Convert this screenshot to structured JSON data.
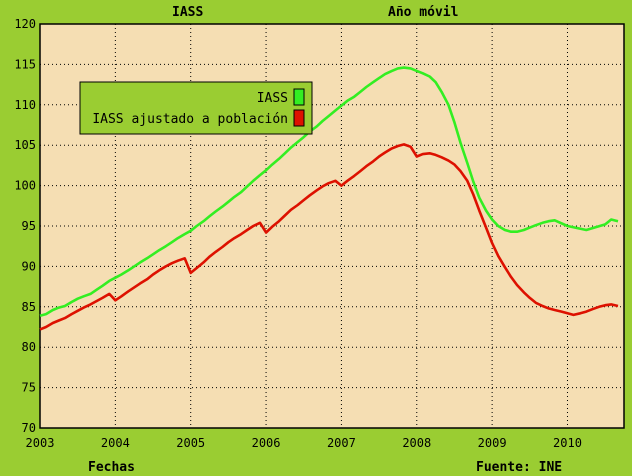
{
  "header": {
    "left_title": "IASS",
    "right_title": "Año móvil"
  },
  "footer": {
    "x_title": "Fechas",
    "source": "Fuente: INE"
  },
  "chart_data": {
    "type": "line",
    "ylim": [
      70,
      120
    ],
    "y_ticks": [
      "70",
      "75",
      "80",
      "85",
      "90",
      "95",
      "100",
      "105",
      "110",
      "115",
      "120"
    ],
    "xlim": [
      2003.0,
      2010.75
    ],
    "x_ticks": [
      "2003",
      "2004",
      "2005",
      "2006",
      "2007",
      "2008",
      "2009",
      "2010"
    ],
    "grid": true,
    "legend_position": "top-left",
    "series": [
      {
        "name": "IASS",
        "color": "#33ee22",
        "points": [
          [
            2003.0,
            83.9
          ],
          [
            2003.08,
            84.1
          ],
          [
            2003.17,
            84.6
          ],
          [
            2003.25,
            84.9
          ],
          [
            2003.33,
            85.1
          ],
          [
            2003.42,
            85.6
          ],
          [
            2003.5,
            86.0
          ],
          [
            2003.58,
            86.3
          ],
          [
            2003.67,
            86.6
          ],
          [
            2003.75,
            87.1
          ],
          [
            2003.83,
            87.6
          ],
          [
            2003.92,
            88.2
          ],
          [
            2004.0,
            88.6
          ],
          [
            2004.08,
            89.0
          ],
          [
            2004.17,
            89.5
          ],
          [
            2004.25,
            90.0
          ],
          [
            2004.33,
            90.5
          ],
          [
            2004.42,
            91.0
          ],
          [
            2004.5,
            91.5
          ],
          [
            2004.58,
            92.0
          ],
          [
            2004.67,
            92.5
          ],
          [
            2004.75,
            93.0
          ],
          [
            2004.83,
            93.5
          ],
          [
            2004.92,
            94.0
          ],
          [
            2005.0,
            94.4
          ],
          [
            2005.08,
            95.0
          ],
          [
            2005.17,
            95.6
          ],
          [
            2005.25,
            96.2
          ],
          [
            2005.33,
            96.8
          ],
          [
            2005.42,
            97.4
          ],
          [
            2005.5,
            98.0
          ],
          [
            2005.58,
            98.6
          ],
          [
            2005.67,
            99.2
          ],
          [
            2005.75,
            99.9
          ],
          [
            2005.83,
            100.6
          ],
          [
            2005.92,
            101.3
          ],
          [
            2006.0,
            101.9
          ],
          [
            2006.08,
            102.6
          ],
          [
            2006.17,
            103.3
          ],
          [
            2006.25,
            104.0
          ],
          [
            2006.33,
            104.7
          ],
          [
            2006.42,
            105.4
          ],
          [
            2006.5,
            106.0
          ],
          [
            2006.58,
            106.7
          ],
          [
            2006.67,
            107.3
          ],
          [
            2006.75,
            108.0
          ],
          [
            2006.83,
            108.6
          ],
          [
            2006.92,
            109.3
          ],
          [
            2007.0,
            109.9
          ],
          [
            2007.08,
            110.5
          ],
          [
            2007.17,
            111.0
          ],
          [
            2007.25,
            111.6
          ],
          [
            2007.33,
            112.2
          ],
          [
            2007.42,
            112.8
          ],
          [
            2007.5,
            113.3
          ],
          [
            2007.58,
            113.8
          ],
          [
            2007.67,
            114.2
          ],
          [
            2007.75,
            114.5
          ],
          [
            2007.83,
            114.6
          ],
          [
            2007.92,
            114.5
          ],
          [
            2008.0,
            114.2
          ],
          [
            2008.08,
            113.9
          ],
          [
            2008.17,
            113.5
          ],
          [
            2008.25,
            112.8
          ],
          [
            2008.33,
            111.6
          ],
          [
            2008.42,
            110.0
          ],
          [
            2008.5,
            107.8
          ],
          [
            2008.58,
            105.3
          ],
          [
            2008.67,
            102.8
          ],
          [
            2008.75,
            100.5
          ],
          [
            2008.83,
            98.5
          ],
          [
            2008.92,
            96.9
          ],
          [
            2009.0,
            95.8
          ],
          [
            2009.08,
            95.0
          ],
          [
            2009.17,
            94.5
          ],
          [
            2009.25,
            94.3
          ],
          [
            2009.33,
            94.3
          ],
          [
            2009.42,
            94.5
          ],
          [
            2009.5,
            94.8
          ],
          [
            2009.58,
            95.1
          ],
          [
            2009.67,
            95.4
          ],
          [
            2009.75,
            95.6
          ],
          [
            2009.83,
            95.7
          ],
          [
            2010.0,
            95.0
          ],
          [
            2010.25,
            94.5
          ],
          [
            2010.5,
            95.2
          ],
          [
            2010.58,
            95.8
          ],
          [
            2010.67,
            95.6
          ]
        ]
      },
      {
        "name": "IASS ajustado a población",
        "color": "#dd1100",
        "points": [
          [
            2003.0,
            82.2
          ],
          [
            2003.08,
            82.5
          ],
          [
            2003.17,
            83.0
          ],
          [
            2003.25,
            83.3
          ],
          [
            2003.33,
            83.6
          ],
          [
            2003.42,
            84.1
          ],
          [
            2003.5,
            84.5
          ],
          [
            2003.58,
            84.9
          ],
          [
            2003.67,
            85.3
          ],
          [
            2003.75,
            85.7
          ],
          [
            2003.83,
            86.1
          ],
          [
            2003.92,
            86.6
          ],
          [
            2004.0,
            85.8
          ],
          [
            2004.08,
            86.3
          ],
          [
            2004.17,
            86.9
          ],
          [
            2004.25,
            87.4
          ],
          [
            2004.33,
            87.9
          ],
          [
            2004.42,
            88.4
          ],
          [
            2004.5,
            89.0
          ],
          [
            2004.58,
            89.5
          ],
          [
            2004.67,
            90.0
          ],
          [
            2004.75,
            90.4
          ],
          [
            2004.83,
            90.7
          ],
          [
            2004.92,
            91.0
          ],
          [
            2005.0,
            89.2
          ],
          [
            2005.08,
            89.8
          ],
          [
            2005.17,
            90.5
          ],
          [
            2005.25,
            91.2
          ],
          [
            2005.33,
            91.8
          ],
          [
            2005.42,
            92.4
          ],
          [
            2005.5,
            93.0
          ],
          [
            2005.58,
            93.5
          ],
          [
            2005.67,
            94.0
          ],
          [
            2005.75,
            94.5
          ],
          [
            2005.83,
            95.0
          ],
          [
            2005.92,
            95.4
          ],
          [
            2006.0,
            94.2
          ],
          [
            2006.08,
            94.9
          ],
          [
            2006.17,
            95.6
          ],
          [
            2006.25,
            96.3
          ],
          [
            2006.33,
            97.0
          ],
          [
            2006.42,
            97.6
          ],
          [
            2006.5,
            98.2
          ],
          [
            2006.58,
            98.8
          ],
          [
            2006.67,
            99.4
          ],
          [
            2006.75,
            99.9
          ],
          [
            2006.83,
            100.3
          ],
          [
            2006.92,
            100.6
          ],
          [
            2007.0,
            100.0
          ],
          [
            2007.08,
            100.6
          ],
          [
            2007.17,
            101.2
          ],
          [
            2007.25,
            101.8
          ],
          [
            2007.33,
            102.4
          ],
          [
            2007.42,
            103.0
          ],
          [
            2007.5,
            103.6
          ],
          [
            2007.58,
            104.1
          ],
          [
            2007.67,
            104.6
          ],
          [
            2007.75,
            104.9
          ],
          [
            2007.83,
            105.1
          ],
          [
            2007.92,
            104.8
          ],
          [
            2008.0,
            103.6
          ],
          [
            2008.08,
            103.9
          ],
          [
            2008.17,
            104.0
          ],
          [
            2008.25,
            103.8
          ],
          [
            2008.33,
            103.5
          ],
          [
            2008.42,
            103.1
          ],
          [
            2008.5,
            102.6
          ],
          [
            2008.58,
            101.8
          ],
          [
            2008.67,
            100.6
          ],
          [
            2008.75,
            98.9
          ],
          [
            2008.83,
            96.9
          ],
          [
            2008.92,
            94.8
          ],
          [
            2009.0,
            92.9
          ],
          [
            2009.08,
            91.3
          ],
          [
            2009.17,
            89.9
          ],
          [
            2009.25,
            88.7
          ],
          [
            2009.33,
            87.7
          ],
          [
            2009.42,
            86.8
          ],
          [
            2009.5,
            86.1
          ],
          [
            2009.58,
            85.5
          ],
          [
            2009.67,
            85.1
          ],
          [
            2009.75,
            84.8
          ],
          [
            2009.83,
            84.6
          ],
          [
            2009.92,
            84.4
          ],
          [
            2010.0,
            84.2
          ],
          [
            2010.08,
            84.0
          ],
          [
            2010.17,
            84.2
          ],
          [
            2010.25,
            84.4
          ],
          [
            2010.33,
            84.7
          ],
          [
            2010.42,
            85.0
          ],
          [
            2010.5,
            85.2
          ],
          [
            2010.58,
            85.3
          ],
          [
            2010.67,
            85.1
          ]
        ]
      }
    ]
  }
}
